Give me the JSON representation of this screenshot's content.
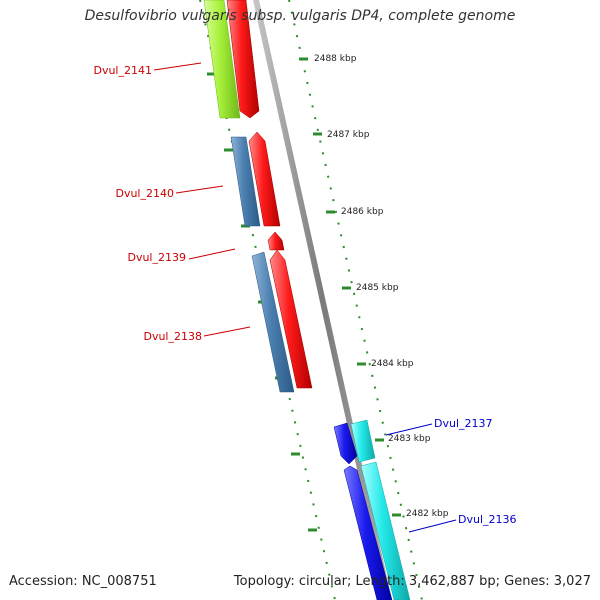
{
  "title": "Desulfovibrio vulgaris subsp. vulgaris DP4, complete genome",
  "footer": {
    "accession": "Accession: NC_008751",
    "topology": "Topology: circular; Length: 3,462,887 bp; Genes: 3,027"
  },
  "colors": {
    "backbone": "#8a8a8a",
    "tick": "#2e8b2e",
    "forward_gene": "#ff1a1a",
    "reverse_gene_steel": "#4a7fb0",
    "reverse_gene_lime": "#a6f03a",
    "forward_gene_cyan": "#22e8e8",
    "reverse_gene_blue": "#1a1aee",
    "label_red": "#cc0000",
    "label_blue": "#0000cc"
  },
  "scale_labels": [
    "2488 kbp",
    "2487 kbp",
    "2486 kbp",
    "2485 kbp",
    "2484 kbp",
    "2483 kbp",
    "2482 kbp"
  ],
  "gene_labels": [
    {
      "text": "Dvul_2141",
      "color": "red"
    },
    {
      "text": "Dvul_2140",
      "color": "red"
    },
    {
      "text": "Dvul_2139",
      "color": "red"
    },
    {
      "text": "Dvul_2138",
      "color": "red"
    },
    {
      "text": "Dvul_2137",
      "color": "blue"
    },
    {
      "text": "Dvul_2136",
      "color": "blue"
    }
  ]
}
